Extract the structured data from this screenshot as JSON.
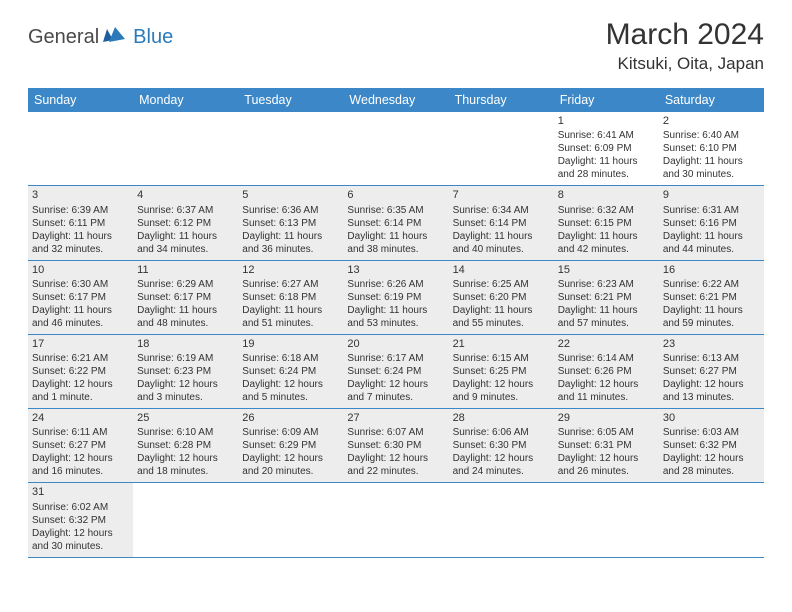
{
  "logo": {
    "part1": "General",
    "part2": "Blue"
  },
  "title": "March 2024",
  "location": "Kitsuki, Oita, Japan",
  "colors": {
    "headerBlue": "#3b87c8",
    "shaded": "#ededed",
    "border": "#3b87c8"
  },
  "dayNames": [
    "Sunday",
    "Monday",
    "Tuesday",
    "Wednesday",
    "Thursday",
    "Friday",
    "Saturday"
  ],
  "weeks": [
    [
      {
        "blank": true
      },
      {
        "blank": true
      },
      {
        "blank": true
      },
      {
        "blank": true
      },
      {
        "blank": true
      },
      {
        "num": "1",
        "sunrise": "Sunrise: 6:41 AM",
        "sunset": "Sunset: 6:09 PM",
        "daylight": "Daylight: 11 hours and 28 minutes."
      },
      {
        "num": "2",
        "sunrise": "Sunrise: 6:40 AM",
        "sunset": "Sunset: 6:10 PM",
        "daylight": "Daylight: 11 hours and 30 minutes."
      }
    ],
    [
      {
        "num": "3",
        "shaded": true,
        "sunrise": "Sunrise: 6:39 AM",
        "sunset": "Sunset: 6:11 PM",
        "daylight": "Daylight: 11 hours and 32 minutes."
      },
      {
        "num": "4",
        "shaded": true,
        "sunrise": "Sunrise: 6:37 AM",
        "sunset": "Sunset: 6:12 PM",
        "daylight": "Daylight: 11 hours and 34 minutes."
      },
      {
        "num": "5",
        "shaded": true,
        "sunrise": "Sunrise: 6:36 AM",
        "sunset": "Sunset: 6:13 PM",
        "daylight": "Daylight: 11 hours and 36 minutes."
      },
      {
        "num": "6",
        "shaded": true,
        "sunrise": "Sunrise: 6:35 AM",
        "sunset": "Sunset: 6:14 PM",
        "daylight": "Daylight: 11 hours and 38 minutes."
      },
      {
        "num": "7",
        "shaded": true,
        "sunrise": "Sunrise: 6:34 AM",
        "sunset": "Sunset: 6:14 PM",
        "daylight": "Daylight: 11 hours and 40 minutes."
      },
      {
        "num": "8",
        "shaded": true,
        "sunrise": "Sunrise: 6:32 AM",
        "sunset": "Sunset: 6:15 PM",
        "daylight": "Daylight: 11 hours and 42 minutes."
      },
      {
        "num": "9",
        "shaded": true,
        "sunrise": "Sunrise: 6:31 AM",
        "sunset": "Sunset: 6:16 PM",
        "daylight": "Daylight: 11 hours and 44 minutes."
      }
    ],
    [
      {
        "num": "10",
        "shaded": true,
        "sunrise": "Sunrise: 6:30 AM",
        "sunset": "Sunset: 6:17 PM",
        "daylight": "Daylight: 11 hours and 46 minutes."
      },
      {
        "num": "11",
        "shaded": true,
        "sunrise": "Sunrise: 6:29 AM",
        "sunset": "Sunset: 6:17 PM",
        "daylight": "Daylight: 11 hours and 48 minutes."
      },
      {
        "num": "12",
        "shaded": true,
        "sunrise": "Sunrise: 6:27 AM",
        "sunset": "Sunset: 6:18 PM",
        "daylight": "Daylight: 11 hours and 51 minutes."
      },
      {
        "num": "13",
        "shaded": true,
        "sunrise": "Sunrise: 6:26 AM",
        "sunset": "Sunset: 6:19 PM",
        "daylight": "Daylight: 11 hours and 53 minutes."
      },
      {
        "num": "14",
        "shaded": true,
        "sunrise": "Sunrise: 6:25 AM",
        "sunset": "Sunset: 6:20 PM",
        "daylight": "Daylight: 11 hours and 55 minutes."
      },
      {
        "num": "15",
        "shaded": true,
        "sunrise": "Sunrise: 6:23 AM",
        "sunset": "Sunset: 6:21 PM",
        "daylight": "Daylight: 11 hours and 57 minutes."
      },
      {
        "num": "16",
        "shaded": true,
        "sunrise": "Sunrise: 6:22 AM",
        "sunset": "Sunset: 6:21 PM",
        "daylight": "Daylight: 11 hours and 59 minutes."
      }
    ],
    [
      {
        "num": "17",
        "shaded": true,
        "sunrise": "Sunrise: 6:21 AM",
        "sunset": "Sunset: 6:22 PM",
        "daylight": "Daylight: 12 hours and 1 minute."
      },
      {
        "num": "18",
        "shaded": true,
        "sunrise": "Sunrise: 6:19 AM",
        "sunset": "Sunset: 6:23 PM",
        "daylight": "Daylight: 12 hours and 3 minutes."
      },
      {
        "num": "19",
        "shaded": true,
        "sunrise": "Sunrise: 6:18 AM",
        "sunset": "Sunset: 6:24 PM",
        "daylight": "Daylight: 12 hours and 5 minutes."
      },
      {
        "num": "20",
        "shaded": true,
        "sunrise": "Sunrise: 6:17 AM",
        "sunset": "Sunset: 6:24 PM",
        "daylight": "Daylight: 12 hours and 7 minutes."
      },
      {
        "num": "21",
        "shaded": true,
        "sunrise": "Sunrise: 6:15 AM",
        "sunset": "Sunset: 6:25 PM",
        "daylight": "Daylight: 12 hours and 9 minutes."
      },
      {
        "num": "22",
        "shaded": true,
        "sunrise": "Sunrise: 6:14 AM",
        "sunset": "Sunset: 6:26 PM",
        "daylight": "Daylight: 12 hours and 11 minutes."
      },
      {
        "num": "23",
        "shaded": true,
        "sunrise": "Sunrise: 6:13 AM",
        "sunset": "Sunset: 6:27 PM",
        "daylight": "Daylight: 12 hours and 13 minutes."
      }
    ],
    [
      {
        "num": "24",
        "shaded": true,
        "sunrise": "Sunrise: 6:11 AM",
        "sunset": "Sunset: 6:27 PM",
        "daylight": "Daylight: 12 hours and 16 minutes."
      },
      {
        "num": "25",
        "shaded": true,
        "sunrise": "Sunrise: 6:10 AM",
        "sunset": "Sunset: 6:28 PM",
        "daylight": "Daylight: 12 hours and 18 minutes."
      },
      {
        "num": "26",
        "shaded": true,
        "sunrise": "Sunrise: 6:09 AM",
        "sunset": "Sunset: 6:29 PM",
        "daylight": "Daylight: 12 hours and 20 minutes."
      },
      {
        "num": "27",
        "shaded": true,
        "sunrise": "Sunrise: 6:07 AM",
        "sunset": "Sunset: 6:30 PM",
        "daylight": "Daylight: 12 hours and 22 minutes."
      },
      {
        "num": "28",
        "shaded": true,
        "sunrise": "Sunrise: 6:06 AM",
        "sunset": "Sunset: 6:30 PM",
        "daylight": "Daylight: 12 hours and 24 minutes."
      },
      {
        "num": "29",
        "shaded": true,
        "sunrise": "Sunrise: 6:05 AM",
        "sunset": "Sunset: 6:31 PM",
        "daylight": "Daylight: 12 hours and 26 minutes."
      },
      {
        "num": "30",
        "shaded": true,
        "sunrise": "Sunrise: 6:03 AM",
        "sunset": "Sunset: 6:32 PM",
        "daylight": "Daylight: 12 hours and 28 minutes."
      }
    ],
    [
      {
        "num": "31",
        "shaded": true,
        "sunrise": "Sunrise: 6:02 AM",
        "sunset": "Sunset: 6:32 PM",
        "daylight": "Daylight: 12 hours and 30 minutes."
      },
      {
        "blank": true
      },
      {
        "blank": true
      },
      {
        "blank": true
      },
      {
        "blank": true
      },
      {
        "blank": true
      },
      {
        "blank": true
      }
    ]
  ]
}
